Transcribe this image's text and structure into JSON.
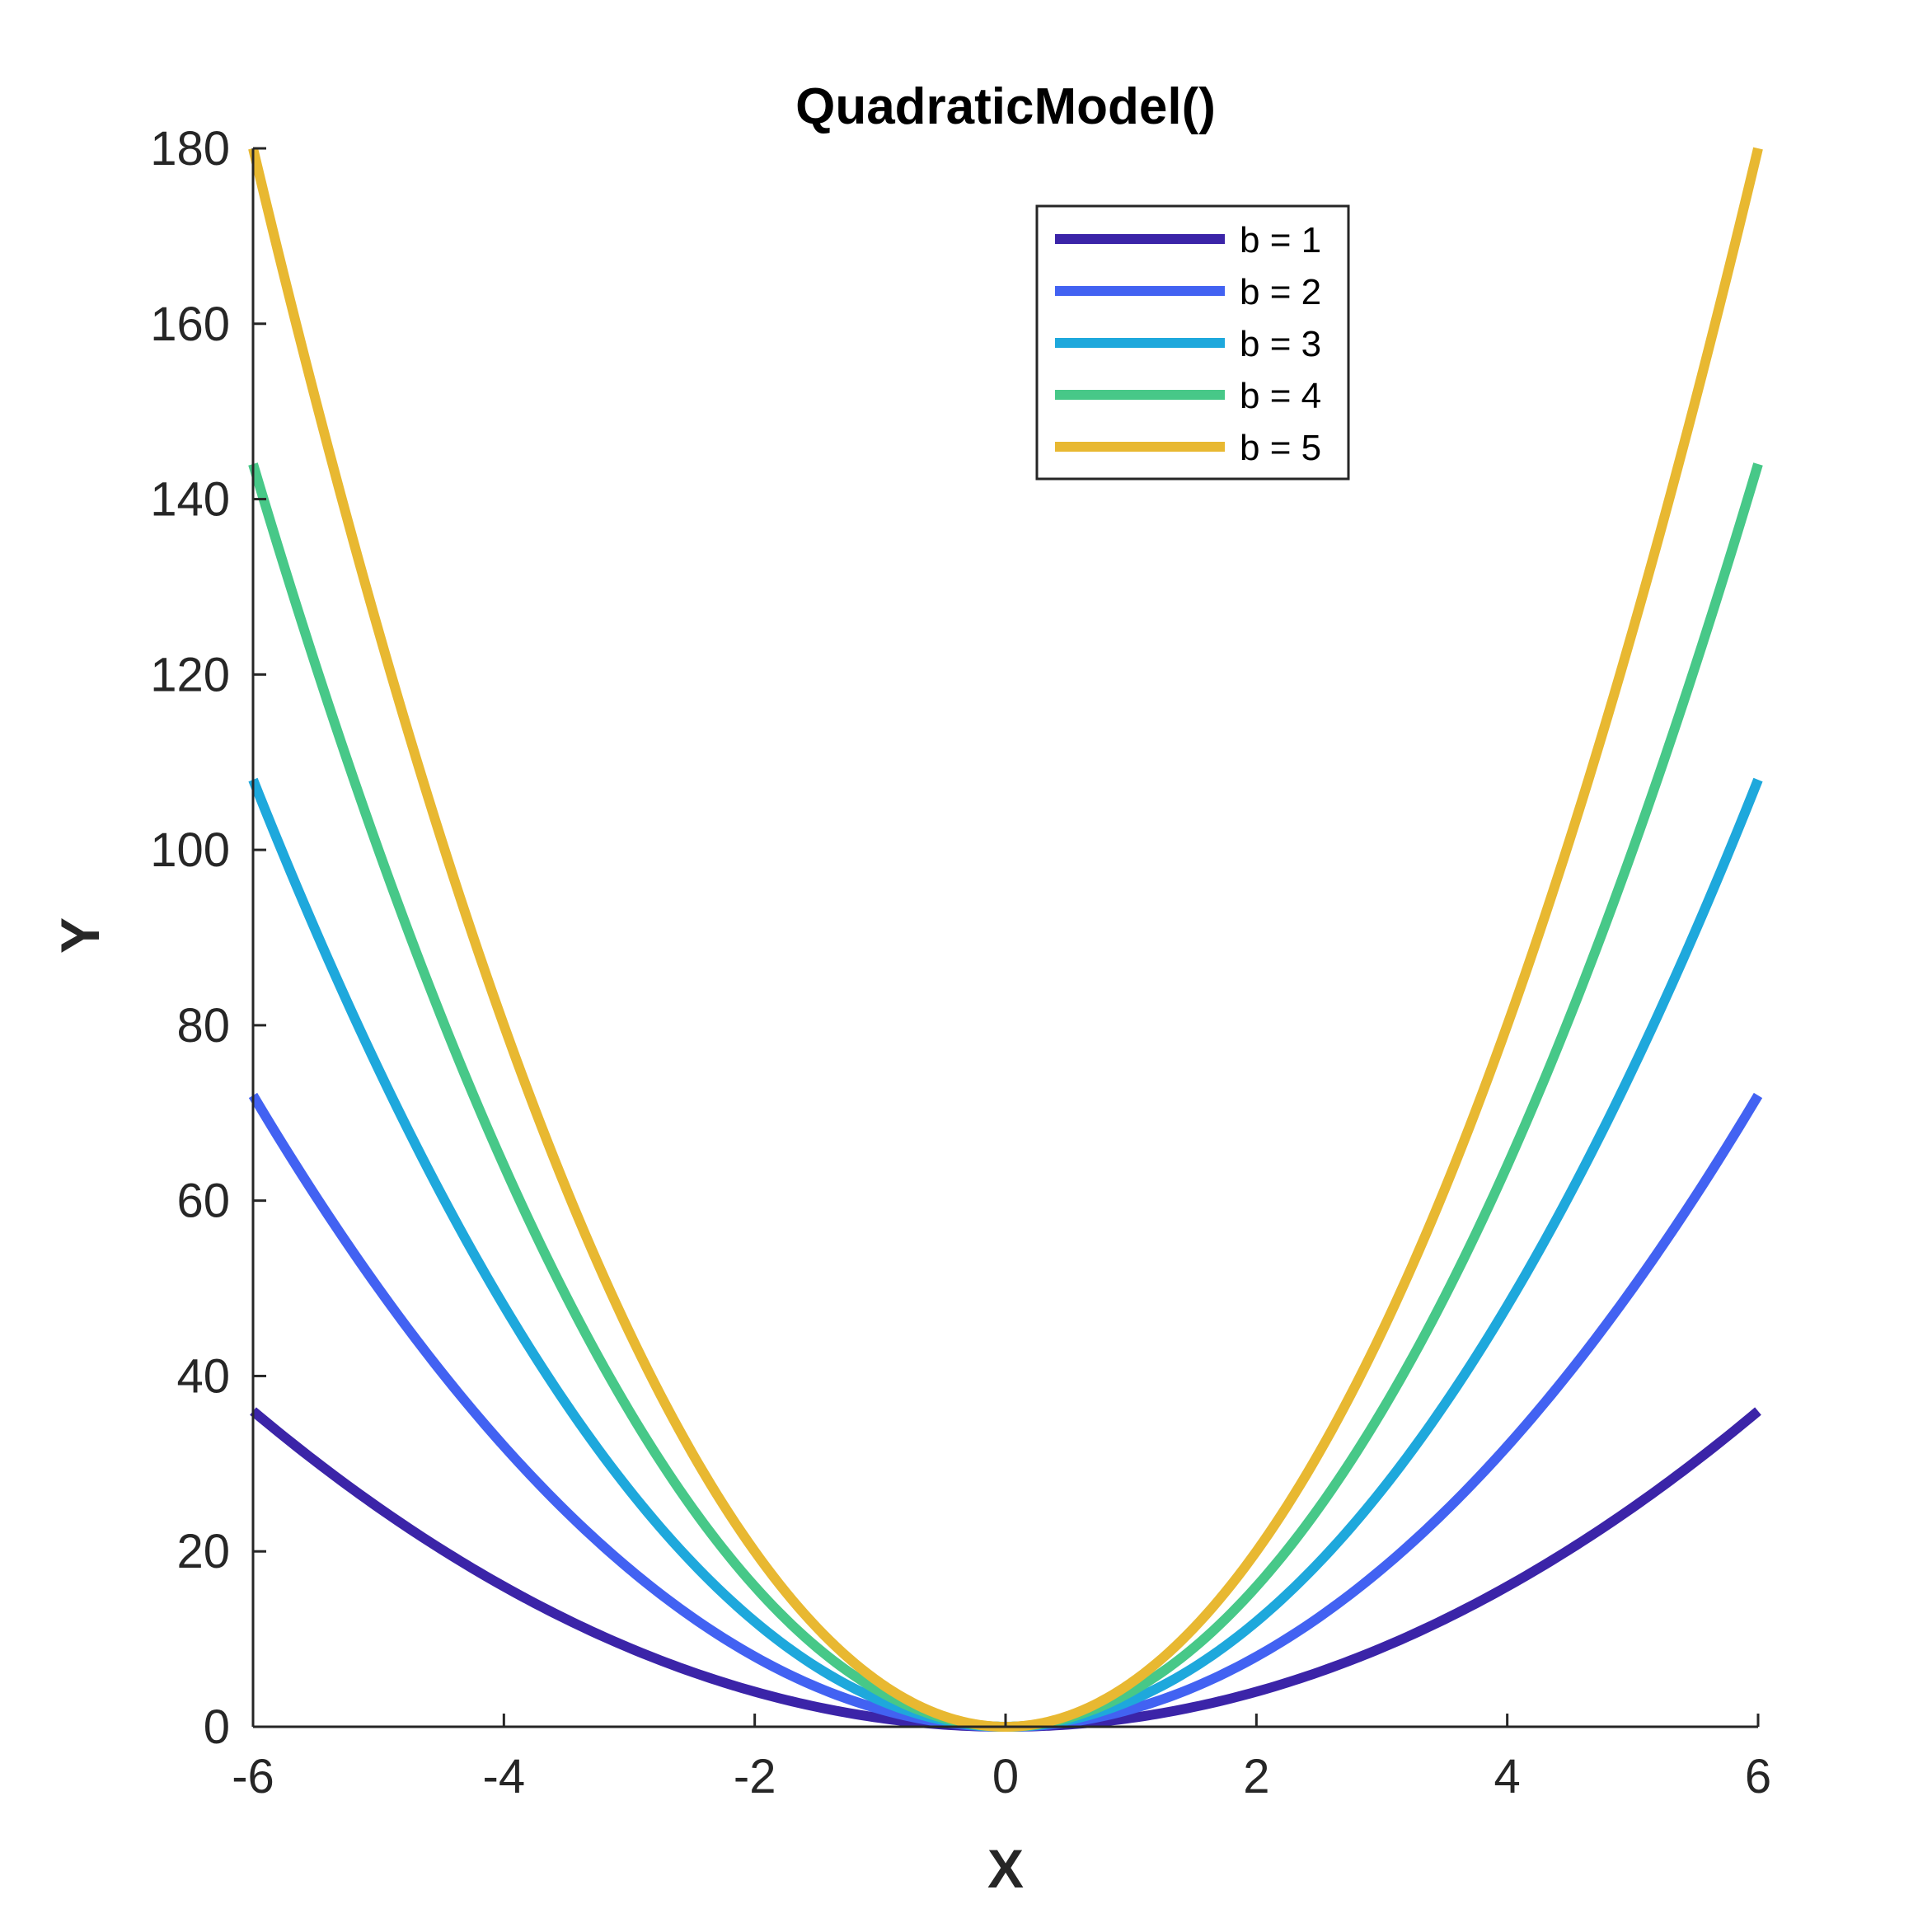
{
  "chart_data": {
    "type": "line",
    "title": "QuadraticModel()",
    "xlabel": "X",
    "ylabel": "Y",
    "xlim": [
      -6,
      6
    ],
    "ylim": [
      0,
      180
    ],
    "xticks": [
      -6,
      -4,
      -2,
      0,
      2,
      4,
      6
    ],
    "xtick_labels": [
      "-6",
      "-4",
      "-2",
      "0",
      "2",
      "4",
      "6"
    ],
    "yticks": [
      0,
      20,
      40,
      60,
      80,
      100,
      120,
      140,
      160,
      180
    ],
    "ytick_labels": [
      "0",
      "20",
      "40",
      "60",
      "80",
      "100",
      "120",
      "140",
      "160",
      "180"
    ],
    "grid": false,
    "legend_position": "top-right",
    "x": [
      -6,
      -5,
      -4,
      -3,
      -2,
      -1,
      0,
      1,
      2,
      3,
      4,
      5,
      6
    ],
    "series": [
      {
        "name": "b = 1",
        "color": "#3B24A8",
        "values": [
          36,
          25,
          16,
          9,
          4,
          1,
          0,
          1,
          4,
          9,
          16,
          25,
          36
        ]
      },
      {
        "name": "b = 2",
        "color": "#4262F2",
        "values": [
          72,
          50,
          32,
          18,
          8,
          2,
          0,
          2,
          8,
          18,
          32,
          50,
          72
        ]
      },
      {
        "name": "b = 3",
        "color": "#1EA8DC",
        "values": [
          108,
          75,
          48,
          27,
          12,
          3,
          0,
          3,
          12,
          27,
          48,
          75,
          108
        ]
      },
      {
        "name": "b = 4",
        "color": "#47C888",
        "values": [
          144,
          100,
          64,
          36,
          16,
          4,
          0,
          4,
          16,
          36,
          64,
          100,
          144
        ]
      },
      {
        "name": "b = 5",
        "color": "#E8B831",
        "values": [
          180,
          125,
          80,
          45,
          20,
          5,
          0,
          5,
          20,
          45,
          80,
          125,
          180
        ]
      }
    ]
  }
}
